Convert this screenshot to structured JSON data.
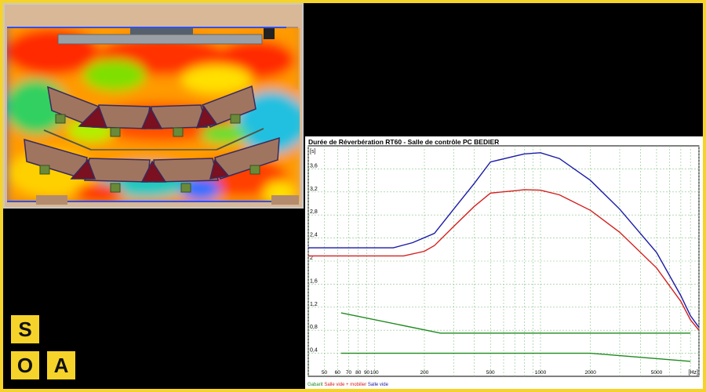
{
  "brand": {
    "letters": [
      "S",
      "O",
      "A"
    ],
    "accent": "#f6d32a"
  },
  "floorplan": {
    "description_icon": "acoustic-heatmap-floorplan"
  },
  "chart_data": {
    "type": "line",
    "title": "Durée de Réverbération RT60 - Salle de contrôle PC BEDIER",
    "ylabel": "[s]",
    "xlabel": "[Hz]",
    "xscale": "log",
    "xlim": [
      40,
      9000
    ],
    "ylim": [
      0,
      4.0
    ],
    "x_ticks": [
      50,
      60,
      70,
      80,
      90,
      100,
      200,
      500,
      1000,
      2000,
      5000
    ],
    "x_tick_labels": [
      "50",
      "60",
      "70",
      "80",
      "90",
      "100",
      "200",
      "500",
      "1000",
      "2000",
      "5000"
    ],
    "y_ticks": [
      0.4,
      0.8,
      1.2,
      1.6,
      2,
      2.4,
      2.8,
      3.2,
      3.6
    ],
    "y_tick_labels": [
      "0,4",
      "0,8",
      "1,2",
      "1,6",
      "2",
      "2,4",
      "2,8",
      "3,2",
      "3,6"
    ],
    "grid": true,
    "series": [
      {
        "name": "Salle vide",
        "color": "#1a1aa8",
        "points": [
          [
            40,
            2.23
          ],
          [
            100,
            2.23
          ],
          [
            130,
            2.23
          ],
          [
            170,
            2.32
          ],
          [
            230,
            2.48
          ],
          [
            300,
            2.9
          ],
          [
            400,
            3.35
          ],
          [
            500,
            3.72
          ],
          [
            700,
            3.82
          ],
          [
            800,
            3.86
          ],
          [
            1000,
            3.88
          ],
          [
            1300,
            3.78
          ],
          [
            2000,
            3.4
          ],
          [
            3000,
            2.9
          ],
          [
            5000,
            2.15
          ],
          [
            7000,
            1.4
          ],
          [
            8000,
            1.05
          ],
          [
            9000,
            0.85
          ]
        ]
      },
      {
        "name": "Salle vide + mobilier",
        "color": "#d42020",
        "points": [
          [
            40,
            2.09
          ],
          [
            100,
            2.09
          ],
          [
            150,
            2.09
          ],
          [
            200,
            2.17
          ],
          [
            230,
            2.27
          ],
          [
            300,
            2.6
          ],
          [
            400,
            2.95
          ],
          [
            500,
            3.18
          ],
          [
            700,
            3.22
          ],
          [
            800,
            3.24
          ],
          [
            1000,
            3.23
          ],
          [
            1300,
            3.15
          ],
          [
            2000,
            2.88
          ],
          [
            3000,
            2.5
          ],
          [
            5000,
            1.88
          ],
          [
            7000,
            1.3
          ],
          [
            8000,
            0.98
          ],
          [
            9000,
            0.8
          ]
        ]
      },
      {
        "name": "Gabarit",
        "color": "#1f8a1f",
        "points": [
          [
            63,
            1.1
          ],
          [
            250,
            0.75
          ],
          [
            8000,
            0.75
          ]
        ],
        "points2": [
          [
            63,
            0.4
          ],
          [
            2000,
            0.4
          ],
          [
            8000,
            0.26
          ]
        ]
      }
    ],
    "legend_placement": "bottom-left"
  }
}
